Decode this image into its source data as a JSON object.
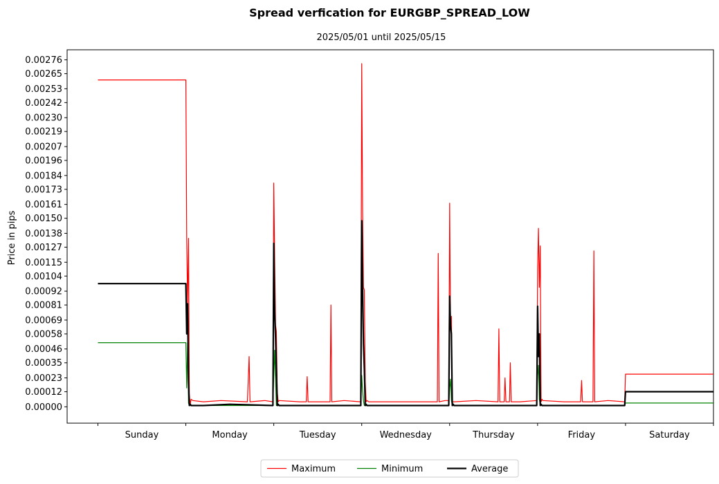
{
  "chart_data": {
    "type": "line",
    "title": "Spread verfication for EURGBP_SPREAD_LOW",
    "subtitle": "2025/05/01 until 2025/05/15",
    "ylabel": "Price in pips",
    "xlabel": "",
    "ylim": [
      -0.00013,
      0.00284
    ],
    "xlim": [
      -0.35,
      7.0
    ],
    "yticks": [
      "0.00000",
      "0.00012",
      "0.00023",
      "0.00035",
      "0.00046",
      "0.00058",
      "0.00069",
      "0.00081",
      "0.00092",
      "0.00104",
      "0.00115",
      "0.00127",
      "0.00138",
      "0.00150",
      "0.00161",
      "0.00173",
      "0.00184",
      "0.00196",
      "0.00207",
      "0.00219",
      "0.00230",
      "0.00242",
      "0.00253",
      "0.00265",
      "0.00276"
    ],
    "categories": [
      "Sunday",
      "Monday",
      "Tuesday",
      "Wednesday",
      "Thursday",
      "Friday",
      "Saturday"
    ],
    "legend": [
      "Maximum",
      "Minimum",
      "Average"
    ],
    "legend_position": "bottom-center",
    "colors": {
      "Maximum": "#ff0000",
      "Minimum": "#008000",
      "Average": "#000000"
    },
    "series": [
      {
        "name": "Maximum",
        "x": [
          0,
          1.0,
          1.01,
          1.02,
          1.03,
          1.04,
          1.05,
          1.06,
          1.08,
          1.2,
          1.4,
          1.7,
          1.72,
          1.73,
          1.9,
          1.99,
          2.0,
          2.01,
          2.02,
          2.03,
          2.04,
          2.05,
          2.06,
          2.3,
          2.37,
          2.38,
          2.39,
          2.6,
          2.64,
          2.65,
          2.66,
          2.8,
          2.99,
          3.0,
          3.01,
          3.02,
          3.03,
          3.04,
          3.05,
          3.06,
          3.08,
          3.3,
          3.6,
          3.86,
          3.87,
          3.88,
          3.95,
          3.99,
          4.0,
          4.01,
          4.02,
          4.03,
          4.05,
          4.3,
          4.55,
          4.56,
          4.57,
          4.62,
          4.63,
          4.64,
          4.68,
          4.69,
          4.7,
          4.8,
          4.99,
          5.0,
          5.01,
          5.02,
          5.03,
          5.04,
          5.05,
          5.06,
          5.3,
          5.49,
          5.5,
          5.51,
          5.63,
          5.64,
          5.65,
          5.8,
          5.99,
          6.0,
          7.0
        ],
        "values": [
          0.0026,
          0.0026,
          0.00135,
          0.0008,
          0.00134,
          0.0001,
          2e-05,
          6e-05,
          5e-05,
          4e-05,
          5e-05,
          4e-05,
          0.0004,
          4e-05,
          5e-05,
          4e-05,
          0.00178,
          0.0012,
          0.00065,
          0.0006,
          0.00012,
          4e-05,
          5e-05,
          4e-05,
          4e-05,
          0.00024,
          4e-05,
          4e-05,
          4e-05,
          0.00081,
          4e-05,
          5e-05,
          4e-05,
          0.00273,
          0.00155,
          0.00095,
          0.00093,
          0.0002,
          4e-05,
          5e-05,
          4e-05,
          4e-05,
          4e-05,
          4e-05,
          0.00122,
          4e-05,
          5e-05,
          5e-05,
          0.00162,
          0.00065,
          0.00072,
          4e-05,
          4e-05,
          5e-05,
          4e-05,
          0.00062,
          4e-05,
          4e-05,
          0.00023,
          4e-05,
          4e-05,
          0.00035,
          4e-05,
          4e-05,
          5e-05,
          0.0011,
          0.00142,
          0.00095,
          0.00128,
          4e-05,
          6e-05,
          5e-05,
          4e-05,
          4e-05,
          0.00021,
          4e-05,
          4e-05,
          0.00124,
          4e-05,
          5e-05,
          4e-05,
          0.00026,
          0.00026
        ]
      },
      {
        "name": "Minimum",
        "x": [
          0,
          1.0,
          1.01,
          1.02,
          1.03,
          1.04,
          1.05,
          1.2,
          1.99,
          2.0,
          2.01,
          2.02,
          2.03,
          2.04,
          2.05,
          2.99,
          3.0,
          3.01,
          3.02,
          3.03,
          3.04,
          3.05,
          3.99,
          4.0,
          4.01,
          4.02,
          4.03,
          4.04,
          4.99,
          5.0,
          5.01,
          5.02,
          5.03,
          5.04,
          5.99,
          6.0,
          7.0
        ],
        "values": [
          0.00051,
          0.00051,
          0.00015,
          0.00051,
          3e-05,
          1e-05,
          1e-05,
          1e-05,
          1e-05,
          0.00025,
          0.00045,
          0.0002,
          1e-05,
          1e-05,
          1e-05,
          1e-05,
          0.00025,
          0.00012,
          5e-05,
          1e-05,
          1e-05,
          1e-05,
          1e-05,
          0.00015,
          0.00022,
          5e-05,
          1e-05,
          1e-05,
          1e-05,
          0.00025,
          0.00033,
          6e-05,
          1e-05,
          1e-05,
          1e-05,
          3e-05,
          3e-05
        ]
      },
      {
        "name": "Average",
        "x": [
          0,
          1.0,
          1.01,
          1.02,
          1.03,
          1.04,
          1.05,
          1.06,
          1.2,
          1.5,
          1.99,
          2.0,
          2.01,
          2.02,
          2.03,
          2.04,
          2.05,
          2.06,
          2.5,
          2.99,
          3.0,
          3.01,
          3.02,
          3.03,
          3.04,
          3.05,
          3.06,
          3.5,
          3.99,
          4.0,
          4.01,
          4.02,
          4.03,
          4.04,
          4.05,
          4.5,
          4.99,
          5.0,
          5.01,
          5.02,
          5.03,
          5.04,
          5.05,
          5.5,
          5.99,
          6.0,
          7.0
        ],
        "values": [
          0.00098,
          0.00098,
          0.00058,
          0.00082,
          0.0002,
          1e-05,
          2e-05,
          1e-05,
          1e-05,
          2e-05,
          1e-05,
          0.0013,
          0.00075,
          0.00055,
          0.0003,
          1e-05,
          2e-05,
          1e-05,
          1e-05,
          1e-05,
          0.00148,
          0.00095,
          0.0005,
          0.0003,
          1e-05,
          2e-05,
          1e-05,
          1e-05,
          1e-05,
          0.00088,
          0.00065,
          0.00058,
          1e-05,
          2e-05,
          1e-05,
          1e-05,
          1e-05,
          0.0008,
          0.0004,
          0.00058,
          1e-05,
          2e-05,
          1e-05,
          1e-05,
          1e-05,
          0.00012,
          0.00012
        ]
      }
    ]
  }
}
